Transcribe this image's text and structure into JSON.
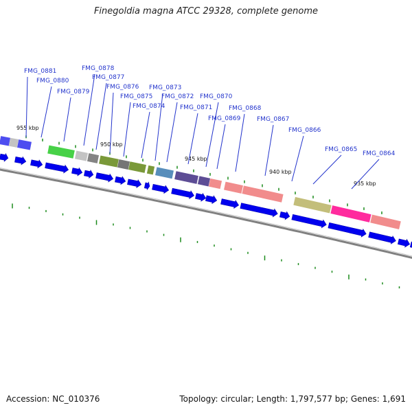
{
  "title": "Finegoldia magna ATCC 29328, complete genome",
  "footer": {
    "accession": "Accession: NC_010376",
    "topology": "Topology: circular; Length: 1,797,577 bp; Genes: 1,691"
  },
  "colors": {
    "label": "#2233cc",
    "cds": "#0000ee",
    "tick": "#1a8a1a",
    "backbone": "#808080"
  },
  "kbp_labels": [
    "955 kbp",
    "950 kbp",
    "945 kbp",
    "940 kbp",
    "935 kbp"
  ],
  "genes": [
    "FMG_0881",
    "FMG_0880",
    "FMG_0879",
    "FMG_0878",
    "FMG_0877",
    "FMG_0876",
    "FMG_0875",
    "FMG_0874",
    "FMG_0873",
    "FMG_0872",
    "FMG_0871",
    "FMG_0870",
    "FMG_0869",
    "FMG_0868",
    "FMG_0867",
    "FMG_0866",
    "FMG_0865",
    "FMG_0864"
  ],
  "cog_band_colors": [
    "#3a3aee",
    "#bcbcbc",
    "#3a3aee",
    "#33cc33",
    "#bcbcbc",
    "#777777",
    "#6b8e23",
    "#666666",
    "#6b8e23",
    "#6b8e23",
    "#4682b4",
    "#4b3a8a",
    "#4b3a8a",
    "#f08080",
    "#f08080",
    "#f08080",
    "#bdb76b",
    "#ff1493",
    "#f08080"
  ]
}
